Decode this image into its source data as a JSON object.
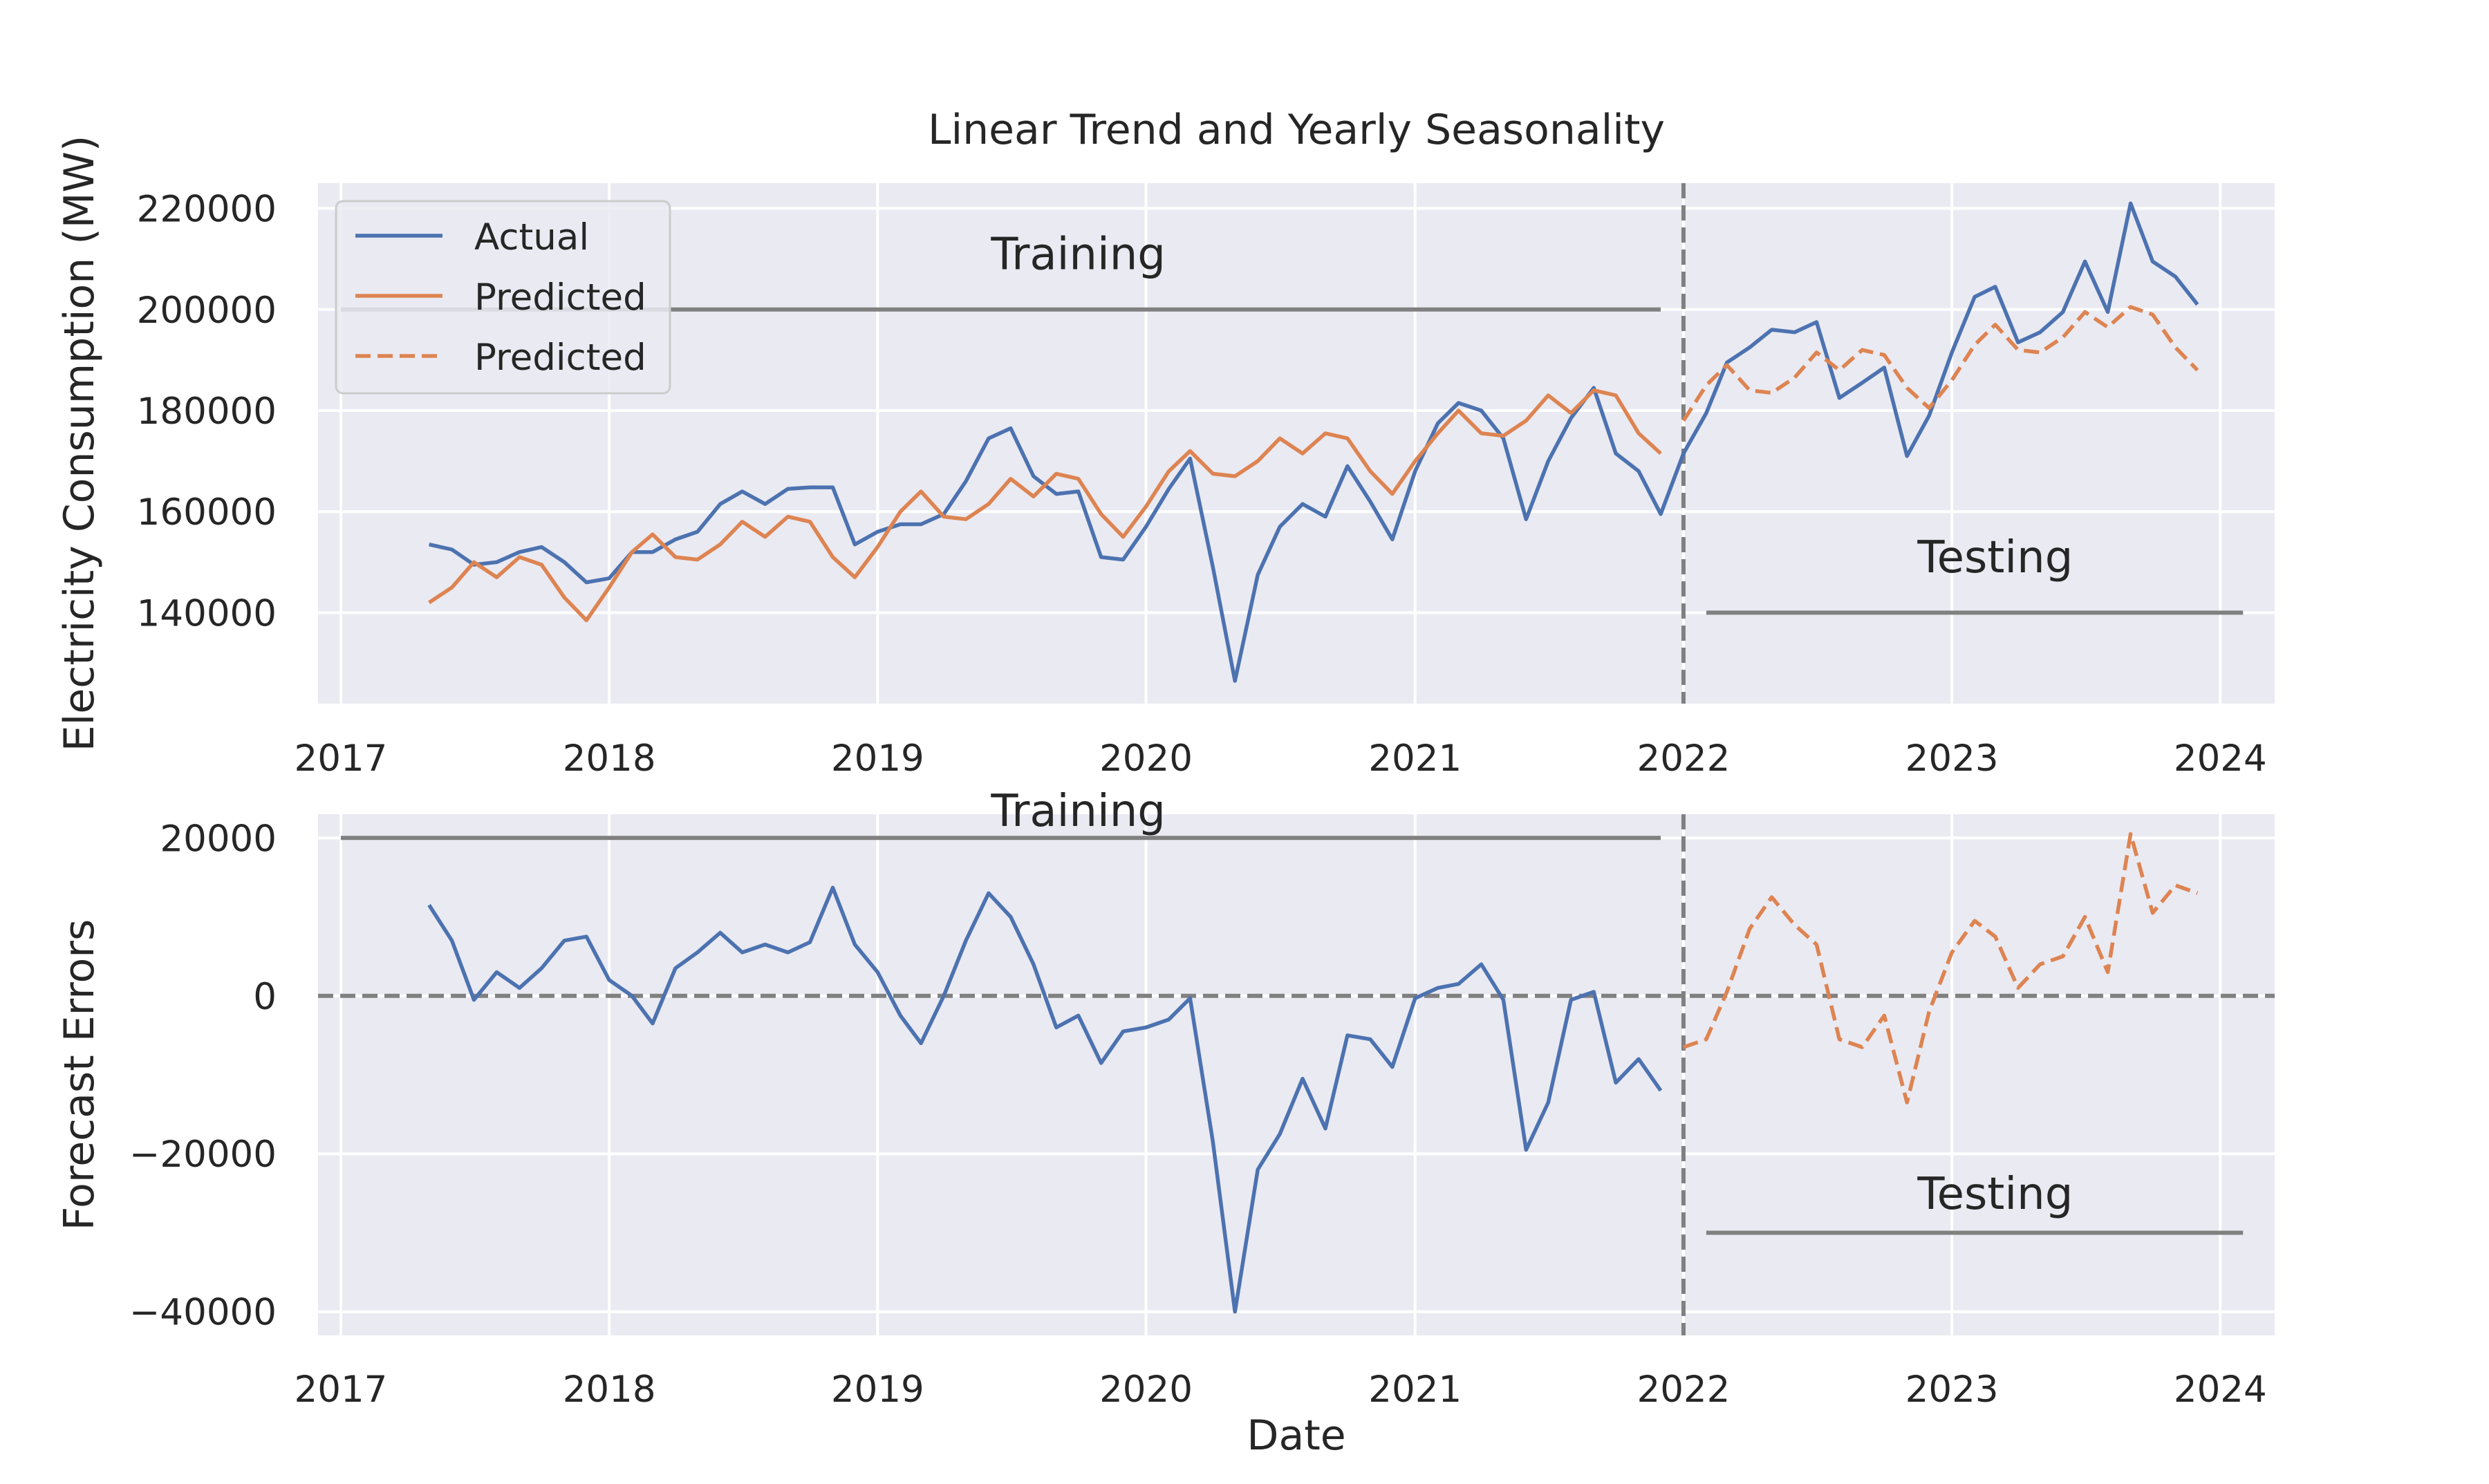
{
  "chart_data": [
    {
      "type": "line",
      "title": "Linear Trend and Yearly Seasonality",
      "xlabel": "",
      "ylabel": "Electricity Consumption (MW)",
      "x_axis": "date",
      "xlim": [
        "2016-12-01",
        "2024-03-15"
      ],
      "ylim": [
        122000,
        225000
      ],
      "xticks": [
        "2017",
        "2018",
        "2019",
        "2020",
        "2021",
        "2022",
        "2023",
        "2024"
      ],
      "yticks": [
        140000,
        160000,
        180000,
        200000,
        220000
      ],
      "grid": true,
      "legend": "top-left",
      "legend_entries": [
        {
          "label": "Actual",
          "color": "#4c72b0",
          "dash": false
        },
        {
          "label": "Predicted",
          "color": "#dd8452",
          "dash": false
        },
        {
          "label": "Predicted",
          "color": "#dd8452",
          "dash": true
        }
      ],
      "split_date": "2022-01-01",
      "annotations": [
        {
          "text": "Training",
          "x": "2019-10-01",
          "y": 208000
        },
        {
          "text": "Testing",
          "x": "2023-03-01",
          "y": 148000
        }
      ],
      "reference_lines": [
        {
          "x0": "2017-01-01",
          "x1": "2021-12-01",
          "y": 200000
        },
        {
          "x0": "2022-02-01",
          "x1": "2024-02-01",
          "y": 140000
        }
      ],
      "series": [
        {
          "name": "Actual",
          "color": "#4c72b0",
          "dash": false,
          "x": [
            "2017-05-01",
            "2017-06-01",
            "2017-07-01",
            "2017-08-01",
            "2017-09-01",
            "2017-10-01",
            "2017-11-01",
            "2017-12-01",
            "2018-01-01",
            "2018-02-01",
            "2018-03-01",
            "2018-04-01",
            "2018-05-01",
            "2018-06-01",
            "2018-07-01",
            "2018-08-01",
            "2018-09-01",
            "2018-10-01",
            "2018-11-01",
            "2018-12-01",
            "2019-01-01",
            "2019-02-01",
            "2019-03-01",
            "2019-04-01",
            "2019-05-01",
            "2019-06-01",
            "2019-07-01",
            "2019-08-01",
            "2019-09-01",
            "2019-10-01",
            "2019-11-01",
            "2019-12-01",
            "2020-01-01",
            "2020-02-01",
            "2020-03-01",
            "2020-04-01",
            "2020-05-01",
            "2020-06-01",
            "2020-07-01",
            "2020-08-01",
            "2020-09-01",
            "2020-10-01",
            "2020-11-01",
            "2020-12-01",
            "2021-01-01",
            "2021-02-01",
            "2021-03-01",
            "2021-04-01",
            "2021-05-01",
            "2021-06-01",
            "2021-07-01",
            "2021-08-01",
            "2021-09-01",
            "2021-10-01",
            "2021-11-01",
            "2021-12-01",
            "2022-01-01",
            "2022-02-01",
            "2022-03-01",
            "2022-04-01",
            "2022-05-01",
            "2022-06-01",
            "2022-07-01",
            "2022-08-01",
            "2022-09-01",
            "2022-10-01",
            "2022-11-01",
            "2022-12-01",
            "2023-01-01",
            "2023-02-01",
            "2023-03-01",
            "2023-04-01",
            "2023-05-01",
            "2023-06-01",
            "2023-07-01",
            "2023-08-01",
            "2023-09-01",
            "2023-10-01",
            "2023-11-01",
            "2023-12-01"
          ],
          "values": [
            153500,
            152500,
            149500,
            150000,
            152000,
            153000,
            150000,
            146000,
            146800,
            152000,
            152000,
            154500,
            156000,
            161500,
            164000,
            161500,
            164500,
            164800,
            164800,
            153500,
            156000,
            157500,
            157500,
            159500,
            166000,
            174500,
            176500,
            167000,
            163500,
            164000,
            151000,
            150500,
            157000,
            164500,
            170500,
            149000,
            126500,
            147500,
            157000,
            161500,
            159000,
            169000,
            162000,
            154500,
            168000,
            177500,
            181500,
            180000,
            174500,
            158500,
            170000,
            178500,
            184500,
            171500,
            168000,
            159500,
            171500,
            179500,
            189500,
            192500,
            196000,
            195500,
            197500,
            182500,
            185500,
            188500,
            171000,
            179000,
            191500,
            202500,
            204500,
            193500,
            195500,
            199500,
            209500,
            199500,
            221000,
            209500,
            206500,
            201000
          ]
        },
        {
          "name": "Predicted",
          "color": "#dd8452",
          "dash": false,
          "x": [
            "2017-05-01",
            "2017-06-01",
            "2017-07-01",
            "2017-08-01",
            "2017-09-01",
            "2017-10-01",
            "2017-11-01",
            "2017-12-01",
            "2018-01-01",
            "2018-02-01",
            "2018-03-01",
            "2018-04-01",
            "2018-05-01",
            "2018-06-01",
            "2018-07-01",
            "2018-08-01",
            "2018-09-01",
            "2018-10-01",
            "2018-11-01",
            "2018-12-01",
            "2019-01-01",
            "2019-02-01",
            "2019-03-01",
            "2019-04-01",
            "2019-05-01",
            "2019-06-01",
            "2019-07-01",
            "2019-08-01",
            "2019-09-01",
            "2019-10-01",
            "2019-11-01",
            "2019-12-01",
            "2020-01-01",
            "2020-02-01",
            "2020-03-01",
            "2020-04-01",
            "2020-05-01",
            "2020-06-01",
            "2020-07-01",
            "2020-08-01",
            "2020-09-01",
            "2020-10-01",
            "2020-11-01",
            "2020-12-01",
            "2021-01-01",
            "2021-02-01",
            "2021-03-01",
            "2021-04-01",
            "2021-05-01",
            "2021-06-01",
            "2021-07-01",
            "2021-08-01",
            "2021-09-01",
            "2021-10-01",
            "2021-11-01",
            "2021-12-01"
          ],
          "values": [
            142000,
            145000,
            150000,
            147000,
            151000,
            149500,
            143000,
            138500,
            145000,
            152000,
            155500,
            151000,
            150500,
            153500,
            158000,
            155000,
            159000,
            158000,
            151000,
            147000,
            153000,
            160000,
            164000,
            159000,
            158500,
            161500,
            166500,
            163000,
            167500,
            166500,
            159500,
            155000,
            161000,
            168000,
            172000,
            167500,
            167000,
            170000,
            174500,
            171500,
            175500,
            174500,
            168000,
            163500,
            170000,
            175500,
            180000,
            175500,
            175000,
            178000,
            183000,
            179500,
            184000,
            183000,
            175500,
            171500
          ]
        },
        {
          "name": "Predicted",
          "color": "#dd8452",
          "dash": true,
          "x": [
            "2022-01-01",
            "2022-02-01",
            "2022-03-01",
            "2022-04-01",
            "2022-05-01",
            "2022-06-01",
            "2022-07-01",
            "2022-08-01",
            "2022-09-01",
            "2022-10-01",
            "2022-11-01",
            "2022-12-01",
            "2023-01-01",
            "2023-02-01",
            "2023-03-01",
            "2023-04-01",
            "2023-05-01",
            "2023-06-01",
            "2023-07-01",
            "2023-08-01",
            "2023-09-01",
            "2023-10-01",
            "2023-11-01",
            "2023-12-01"
          ],
          "values": [
            178000,
            185000,
            189000,
            184000,
            183500,
            186500,
            191500,
            188000,
            192000,
            191000,
            184500,
            180500,
            186000,
            193000,
            197000,
            192000,
            191500,
            194500,
            199500,
            196500,
            200500,
            199000,
            192500,
            188000
          ]
        }
      ]
    },
    {
      "type": "line",
      "title": "",
      "xlabel": "Date",
      "ylabel": "Forecast Errors",
      "x_axis": "date",
      "xlim": [
        "2016-12-01",
        "2024-03-15"
      ],
      "ylim": [
        -43000,
        23000
      ],
      "xticks": [
        "2017",
        "2018",
        "2019",
        "2020",
        "2021",
        "2022",
        "2023",
        "2024"
      ],
      "yticks": [
        -40000,
        -20000,
        0,
        20000
      ],
      "grid": true,
      "split_date": "2022-01-01",
      "zero_line": 0,
      "annotations": [
        {
          "text": "Training",
          "x": "2019-10-01",
          "y": 21500
        },
        {
          "text": "Testing",
          "x": "2023-03-01",
          "y": -27000
        }
      ],
      "reference_lines": [
        {
          "x0": "2017-01-01",
          "x1": "2021-12-01",
          "y": 20000
        },
        {
          "x0": "2022-02-01",
          "x1": "2024-02-01",
          "y": -30000
        }
      ],
      "series": [
        {
          "color": "#4c72b0",
          "dash": false,
          "x": [
            "2017-05-01",
            "2017-06-01",
            "2017-07-01",
            "2017-08-01",
            "2017-09-01",
            "2017-10-01",
            "2017-11-01",
            "2017-12-01",
            "2018-01-01",
            "2018-02-01",
            "2018-03-01",
            "2018-04-01",
            "2018-05-01",
            "2018-06-01",
            "2018-07-01",
            "2018-08-01",
            "2018-09-01",
            "2018-10-01",
            "2018-11-01",
            "2018-12-01",
            "2019-01-01",
            "2019-02-01",
            "2019-03-01",
            "2019-04-01",
            "2019-05-01",
            "2019-06-01",
            "2019-07-01",
            "2019-08-01",
            "2019-09-01",
            "2019-10-01",
            "2019-11-01",
            "2019-12-01",
            "2020-01-01",
            "2020-02-01",
            "2020-03-01",
            "2020-04-01",
            "2020-05-01",
            "2020-06-01",
            "2020-07-01",
            "2020-08-01",
            "2020-09-01",
            "2020-10-01",
            "2020-11-01",
            "2020-12-01",
            "2021-01-01",
            "2021-02-01",
            "2021-03-01",
            "2021-04-01",
            "2021-05-01",
            "2021-06-01",
            "2021-07-01",
            "2021-08-01",
            "2021-09-01",
            "2021-10-01",
            "2021-11-01",
            "2021-12-01"
          ],
          "values": [
            11500,
            7000,
            -500,
            3000,
            1000,
            3500,
            7000,
            7500,
            2000,
            0,
            -3500,
            3500,
            5500,
            8000,
            5500,
            6500,
            5500,
            6800,
            13700,
            6500,
            3000,
            -2500,
            -6000,
            0,
            7000,
            13000,
            10000,
            4000,
            -4000,
            -2500,
            -8500,
            -4500,
            -4000,
            -3000,
            -300,
            -18500,
            -40000,
            -22000,
            -17500,
            -10500,
            -16800,
            -5000,
            -5500,
            -9000,
            -300,
            1000,
            1500,
            4000,
            -500,
            -19500,
            -13500,
            -500,
            500,
            -11000,
            -8000,
            -12000
          ]
        },
        {
          "color": "#dd8452",
          "dash": true,
          "x": [
            "2022-01-01",
            "2022-02-01",
            "2022-03-01",
            "2022-04-01",
            "2022-05-01",
            "2022-06-01",
            "2022-07-01",
            "2022-08-01",
            "2022-09-01",
            "2022-10-01",
            "2022-11-01",
            "2022-12-01",
            "2023-01-01",
            "2023-02-01",
            "2023-03-01",
            "2023-04-01",
            "2023-05-01",
            "2023-06-01",
            "2023-07-01",
            "2023-08-01",
            "2023-09-01",
            "2023-10-01",
            "2023-11-01",
            "2023-12-01"
          ],
          "values": [
            -6500,
            -5500,
            500,
            8500,
            12500,
            9000,
            6500,
            -5500,
            -6500,
            -2500,
            -13500,
            -2000,
            5500,
            9500,
            7500,
            1000,
            4000,
            5000,
            10000,
            3000,
            20500,
            10500,
            14000,
            13000
          ]
        }
      ]
    }
  ]
}
